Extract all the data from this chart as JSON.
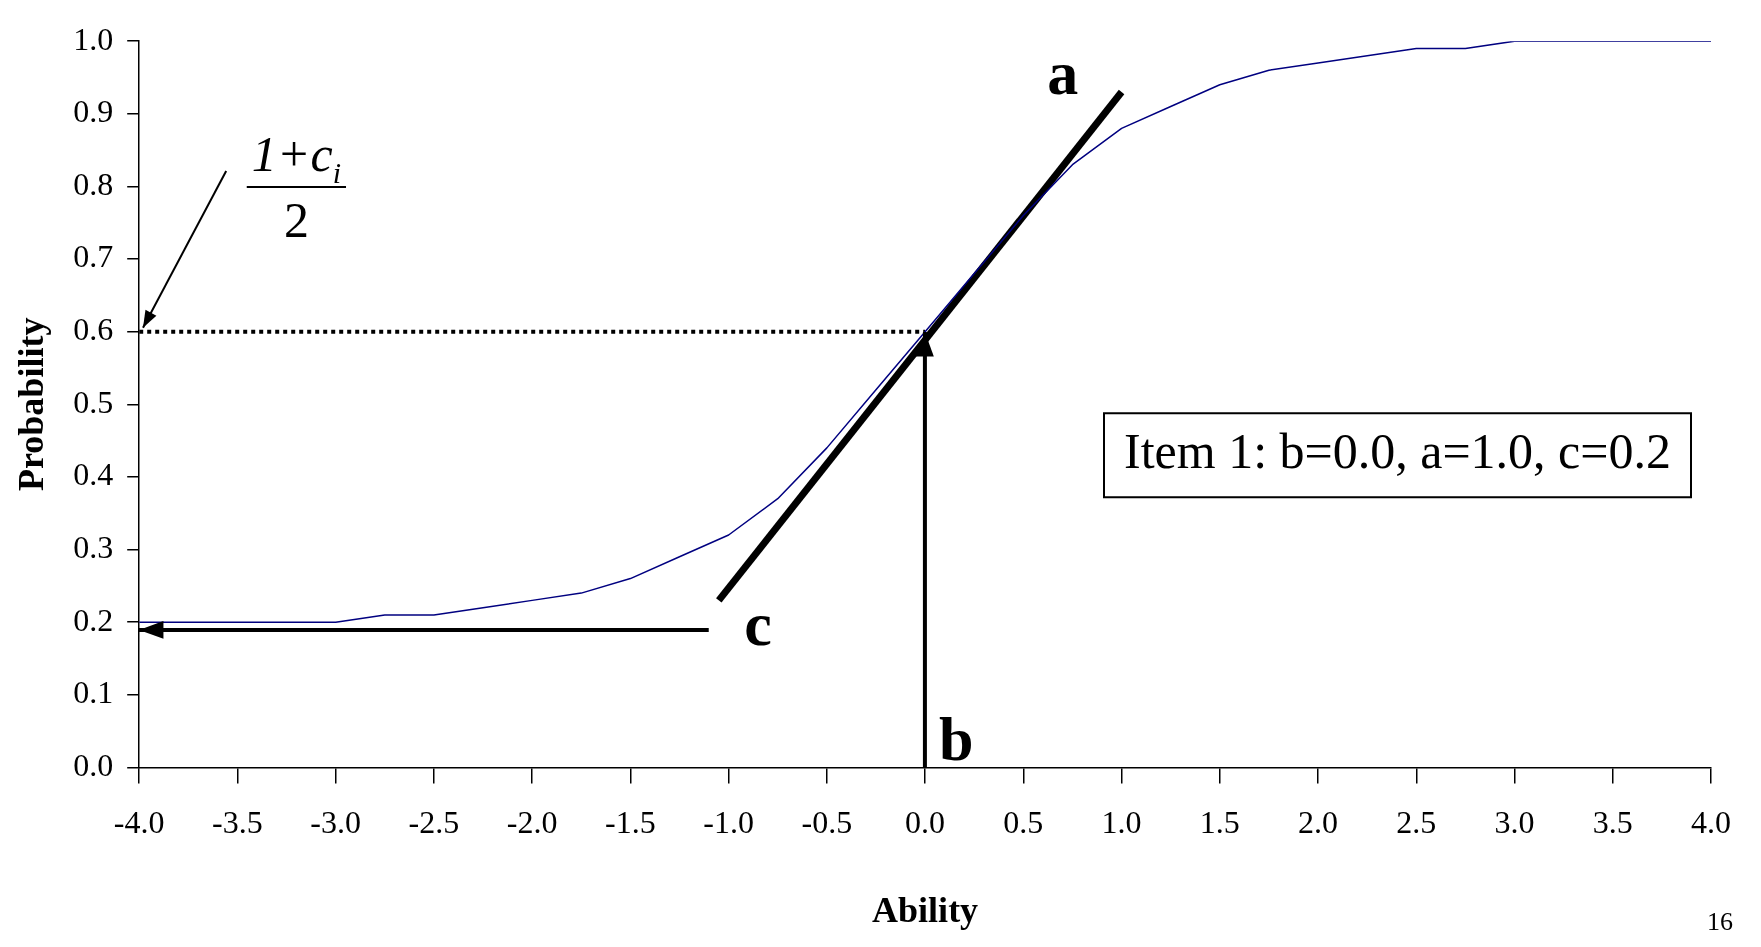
{
  "chart_data": {
    "type": "line",
    "xlabel": "Ability",
    "ylabel": "Probability",
    "xlim": [
      -4,
      4
    ],
    "ylim": [
      0,
      1
    ],
    "xticks": [
      {
        "value": -4,
        "label": "-4.0"
      },
      {
        "value": -3.5,
        "label": "-3.5"
      },
      {
        "value": -3,
        "label": "-3.0"
      },
      {
        "value": -2.5,
        "label": "-2.5"
      },
      {
        "value": -2,
        "label": "-2.0"
      },
      {
        "value": -1.5,
        "label": "-1.5"
      },
      {
        "value": -1,
        "label": "-1.0"
      },
      {
        "value": -0.5,
        "label": "-0.5"
      },
      {
        "value": 0,
        "label": "0.0"
      },
      {
        "value": 0.5,
        "label": "0.5"
      },
      {
        "value": 1,
        "label": "1.0"
      },
      {
        "value": 1.5,
        "label": "1.5"
      },
      {
        "value": 2,
        "label": "2.0"
      },
      {
        "value": 2.5,
        "label": "2.5"
      },
      {
        "value": 3,
        "label": "3.0"
      },
      {
        "value": 3.5,
        "label": "3.5"
      },
      {
        "value": 4,
        "label": "4.0"
      }
    ],
    "yticks": [
      {
        "value": 0,
        "label": "0.0"
      },
      {
        "value": 0.1,
        "label": "0.1"
      },
      {
        "value": 0.2,
        "label": "0.2"
      },
      {
        "value": 0.3,
        "label": "0.3"
      },
      {
        "value": 0.4,
        "label": "0.4"
      },
      {
        "value": 0.5,
        "label": "0.5"
      },
      {
        "value": 0.6,
        "label": "0.6"
      },
      {
        "value": 0.7,
        "label": "0.7"
      },
      {
        "value": 0.8,
        "label": "0.8"
      },
      {
        "value": 0.9,
        "label": "0.9"
      },
      {
        "value": 1,
        "label": "1.0"
      }
    ],
    "grid": false,
    "legend": false,
    "marker": "none",
    "series": [
      {
        "color": "#000080",
        "line_style": "solid",
        "x": [
          -4,
          -3.75,
          -3.5,
          -3.25,
          -3,
          -2.75,
          -2.5,
          -2.25,
          -2,
          -1.75,
          -1.5,
          -1.25,
          -1,
          -0.75,
          -0.5,
          -0.25,
          0,
          0.25,
          0.5,
          0.75,
          1,
          1.25,
          1.5,
          1.75,
          2,
          2.25,
          2.5,
          2.75,
          3,
          3.25,
          3.5,
          3.75,
          4
        ],
        "values": [
          0.2,
          0.2,
          0.2,
          0.2,
          0.2,
          0.21,
          0.21,
          0.22,
          0.23,
          0.24,
          0.26,
          0.29,
          0.32,
          0.37,
          0.44,
          0.52,
          0.6,
          0.68,
          0.76,
          0.83,
          0.88,
          0.91,
          0.94,
          0.96,
          0.97,
          0.98,
          0.99,
          0.99,
          1.0,
          1.0,
          1.0,
          1.0,
          1.0
        ]
      },
      {
        "color": "#000000",
        "line_style": "solid",
        "x": [
          -1.05,
          1.0
        ],
        "values": [
          0.23,
          0.93
        ]
      },
      {
        "color": "#000000",
        "line_style": "dotted",
        "x": [
          -4,
          0
        ],
        "values": [
          0.6,
          0.6
        ]
      }
    ],
    "annotations": [
      "a",
      "c",
      {
        "text": "b",
        "x": 0,
        "y": 0.6
      },
      "1+c$_{i}$",
      "2",
      "Item 1: b=0.0, a=1.0, c=0.2",
      "16"
    ]
  }
}
